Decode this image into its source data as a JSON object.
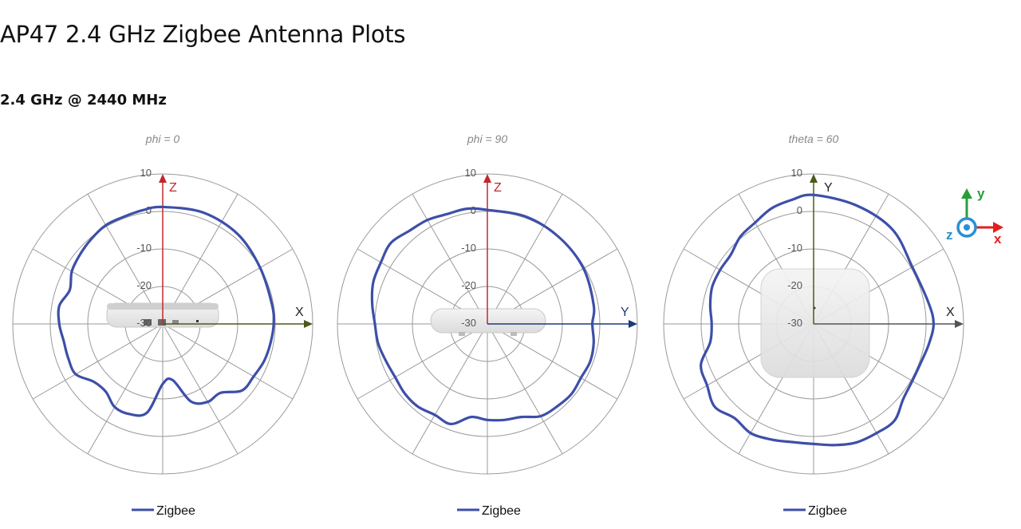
{
  "page": {
    "title": "AP47 2.4 GHz Zigbee Antenna Plots",
    "section": "2.4 GHz @ 2440 MHz"
  },
  "colors": {
    "trace": "#3d4fa8",
    "grid": "#9a9a9a",
    "z_axis": "#c0282d",
    "x_axis": "#4a5a1a",
    "y_axis": "#1f3a78"
  },
  "chart_data": [
    {
      "type": "polar",
      "title": "phi = 0",
      "radial_ticks": [
        "10",
        "0",
        "-10",
        "-20",
        "-30"
      ],
      "rlim": [
        -40,
        10
      ],
      "angle_unit": "degrees (0 = up, clockwise)",
      "axes": {
        "up": "Z",
        "right": "X"
      },
      "series": [
        {
          "name": "Zigbee",
          "angles": [
            0,
            20,
            40,
            60,
            80,
            90,
            100,
            110,
            120,
            130,
            140,
            150,
            160,
            170,
            180,
            190,
            200,
            210,
            220,
            230,
            240,
            250,
            260,
            270,
            280,
            290,
            300,
            310,
            320,
            330,
            340,
            350
          ],
          "values": [
            -1,
            -0.5,
            -1,
            -2.5,
            -3,
            -3,
            -3.5,
            -4,
            -5,
            -5.5,
            -10,
            -10,
            -12.5,
            -21,
            -20,
            -10,
            -8,
            -8,
            -10.5,
            -10,
            -6.5,
            -6.5,
            -6.5,
            -5.5,
            -5,
            -7,
            -5,
            -4,
            -3,
            -2,
            -2,
            -1.5
          ]
        }
      ]
    },
    {
      "type": "polar",
      "title": "phi = 90",
      "radial_ticks": [
        "10",
        "0",
        "-10",
        "-20",
        "-30"
      ],
      "rlim": [
        -40,
        10
      ],
      "angle_unit": "degrees (0 = up, clockwise)",
      "axes": {
        "up": "Z",
        "right": "Y"
      },
      "series": [
        {
          "name": "Zigbee",
          "angles": [
            0,
            20,
            40,
            60,
            80,
            90,
            100,
            110,
            120,
            130,
            140,
            150,
            160,
            170,
            180,
            190,
            200,
            210,
            220,
            230,
            240,
            250,
            260,
            270,
            280,
            290,
            300,
            310,
            320,
            330,
            340,
            350
          ],
          "values": [
            -2,
            -2,
            -2.5,
            -3,
            -4,
            -5,
            -4,
            -3.5,
            -4,
            -3.5,
            -4,
            -4.5,
            -7,
            -7.5,
            -8,
            -8.5,
            -4.5,
            -5,
            -4,
            -4,
            -4.5,
            -4,
            -3,
            -2.5,
            -1,
            0.5,
            1,
            2,
            0.5,
            0,
            -1,
            -1
          ]
        }
      ]
    },
    {
      "type": "polar",
      "title": "theta = 60",
      "radial_ticks": [
        "10",
        "0",
        "-10",
        "-20",
        "-30"
      ],
      "rlim": [
        -40,
        10
      ],
      "angle_unit": "degrees (0 = up, clockwise)",
      "axes": {
        "up": "Y",
        "right": "X"
      },
      "series": [
        {
          "name": "Zigbee",
          "angles": [
            0,
            20,
            40,
            60,
            80,
            90,
            100,
            110,
            120,
            130,
            140,
            150,
            160,
            170,
            180,
            190,
            200,
            210,
            220,
            230,
            240,
            250,
            260,
            270,
            280,
            290,
            300,
            310,
            320,
            330,
            340,
            350
          ],
          "values": [
            3,
            2,
            1,
            -2,
            -1,
            0,
            -1,
            -2,
            -2,
            -1,
            2,
            2,
            2,
            1,
            0,
            0,
            1,
            2,
            1,
            3,
            1,
            0,
            -5,
            -6,
            -5,
            -4,
            -4,
            -4,
            -2,
            -1,
            1,
            2
          ]
        }
      ]
    }
  ],
  "legend": {
    "label": "Zigbee",
    "placement": "bottom"
  },
  "orientation_key": {
    "y": "y",
    "z": "z",
    "x": "x"
  }
}
